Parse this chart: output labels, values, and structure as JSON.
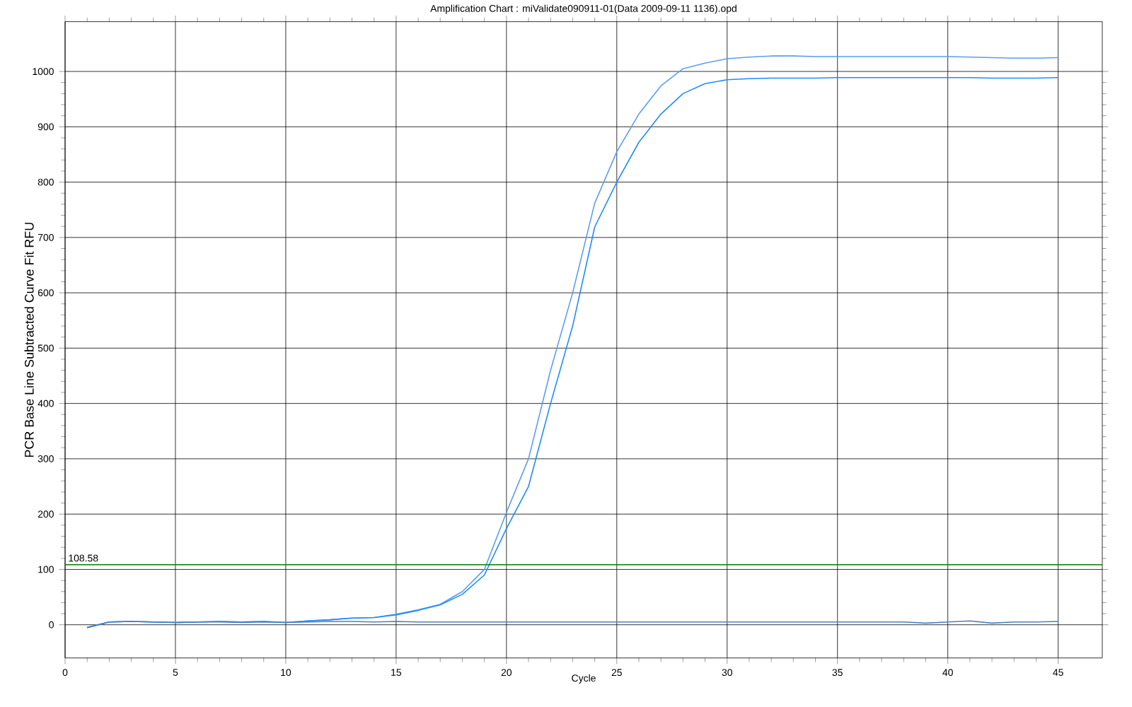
{
  "chart_data": {
    "type": "line",
    "title": "Amplification Chart : miValidate090911-01(Data 2009-09-11 1136).opd",
    "xlabel": "Cycle",
    "ylabel": "PCR Base Line Subtracted Curve Fit RFU",
    "x": [
      1,
      2,
      3,
      4,
      5,
      6,
      7,
      8,
      9,
      10,
      11,
      12,
      13,
      14,
      15,
      16,
      17,
      18,
      19,
      20,
      21,
      22,
      23,
      24,
      25,
      26,
      27,
      28,
      29,
      30,
      31,
      32,
      33,
      34,
      35,
      36,
      37,
      38,
      39,
      40,
      41,
      42,
      43,
      44,
      45
    ],
    "series": [
      {
        "color": "#5c9cf0",
        "values": [
          -5,
          5,
          6,
          5,
          4,
          5,
          6,
          5,
          6,
          4,
          7,
          9,
          12,
          13,
          19,
          27,
          37,
          60,
          100,
          203,
          300,
          460,
          600,
          762,
          855,
          923,
          974,
          1005,
          1015,
          1023,
          1026,
          1028,
          1028,
          1027,
          1027,
          1027,
          1027,
          1027,
          1027,
          1027,
          1026,
          1025,
          1024,
          1024,
          1025
        ]
      },
      {
        "color": "#1e8cff",
        "values": [
          -5,
          5,
          6,
          5,
          4,
          5,
          6,
          5,
          6,
          4,
          7,
          9,
          12,
          13,
          18,
          26,
          36,
          55,
          90,
          174,
          250,
          400,
          540,
          719,
          800,
          872,
          923,
          960,
          978,
          985,
          987,
          988,
          988,
          988,
          989,
          989,
          989,
          989,
          989,
          989,
          989,
          988,
          988,
          988,
          989
        ]
      },
      {
        "color": "#4a80c0",
        "values": [
          -5,
          5,
          6,
          5,
          4,
          5,
          5,
          4,
          5,
          4,
          5,
          6,
          6,
          5,
          6,
          5,
          5,
          5,
          5,
          5,
          5,
          5,
          5,
          5,
          5,
          5,
          5,
          5,
          5,
          5,
          5,
          5,
          5,
          5,
          5,
          5,
          5,
          5,
          3,
          5,
          7,
          3,
          5,
          5,
          6
        ]
      }
    ],
    "xlim": [
      0,
      47
    ],
    "ylim": [
      -60,
      1090
    ],
    "xticks": [
      0,
      5,
      10,
      15,
      20,
      25,
      30,
      35,
      40,
      45
    ],
    "yticks": [
      0,
      100,
      200,
      300,
      400,
      500,
      600,
      700,
      800,
      900,
      1000
    ],
    "grid": true,
    "marker": "none",
    "line_style": "solid",
    "ref_lines": [
      {
        "axis": "y",
        "value": 108.58,
        "label": "108.58",
        "color": "#008000"
      }
    ]
  }
}
